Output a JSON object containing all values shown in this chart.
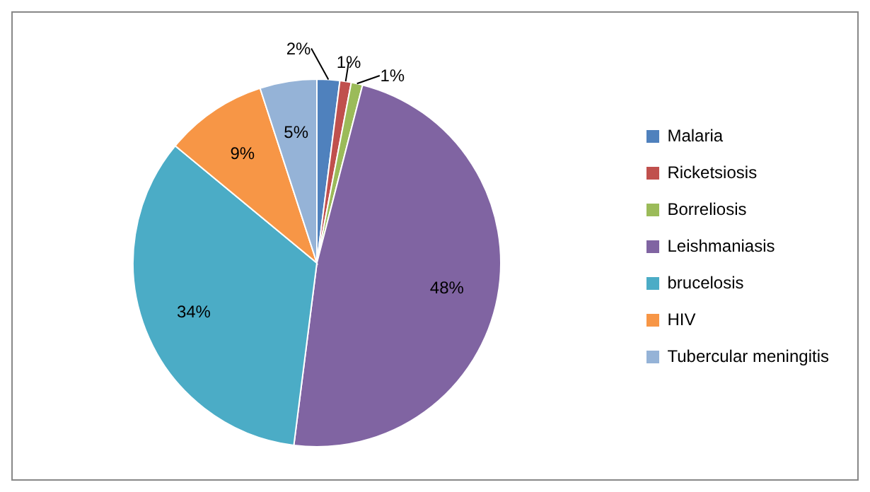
{
  "chart_data": {
    "type": "pie",
    "categories": [
      "Malaria",
      "Ricketsiosis",
      "Borreliosis",
      "Leishmaniasis",
      "brucelosis",
      "HIV",
      "Tubercular meningitis"
    ],
    "values": [
      2,
      1,
      1,
      48,
      34,
      9,
      5
    ],
    "colors": [
      "#4f81bd",
      "#c0504d",
      "#9bbb59",
      "#8064a2",
      "#4bacc6",
      "#f79646",
      "#95b3d7"
    ],
    "value_labels": [
      "2%",
      "1%",
      "1%",
      "48%",
      "34%",
      "9%",
      "5%"
    ],
    "legend": "right"
  }
}
